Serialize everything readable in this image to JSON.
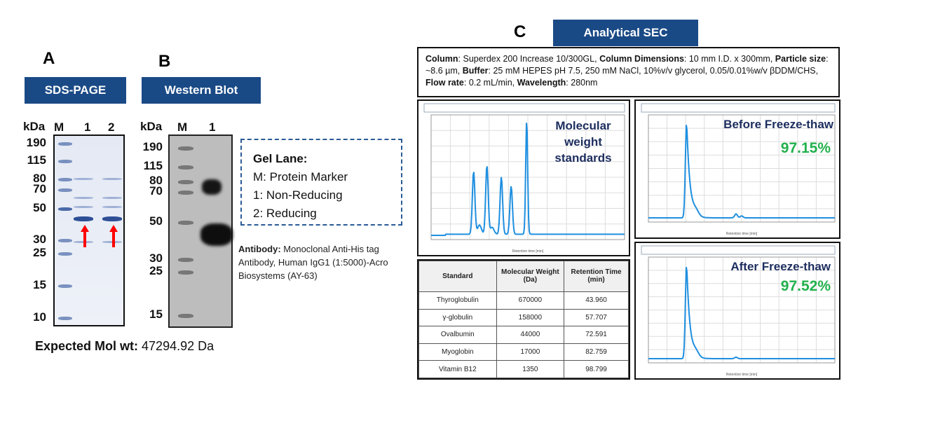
{
  "panel_a": {
    "letter": "A",
    "banner": "SDS-PAGE",
    "kda": "kDa",
    "lanes": [
      "M",
      "1",
      "2"
    ],
    "markers": [
      "190",
      "115",
      "80",
      "70",
      "50",
      "30",
      "25",
      "15",
      "10"
    ]
  },
  "panel_b": {
    "letter": "B",
    "banner": "Western Blot",
    "kda": "kDa",
    "lanes": [
      "M",
      "1"
    ],
    "markers": [
      "190",
      "115",
      "80",
      "70",
      "50",
      "30",
      "25",
      "15"
    ]
  },
  "legend": {
    "title": "Gel Lane:",
    "items": [
      "M: Protein Marker",
      "1: Non-Reducing",
      "2: Reducing"
    ]
  },
  "antibody": {
    "label": "Antibody:",
    "text": "Monoclonal Anti-His tag Antibody, Human IgG1 (1:5000)-Acro Biosystems (AY-63)"
  },
  "expected": {
    "label": "Expected Mol wt:",
    "value": "47294.92 Da"
  },
  "panel_c": {
    "letter": "C",
    "banner": "Analytical SEC"
  },
  "conditions": [
    {
      "k": "Column",
      "v": ": Superdex 200 Increase 10/300GL, "
    },
    {
      "k": "Column Dimensions",
      "v": ": 10 mm I.D. x 300mm, "
    },
    {
      "k": "Particle size",
      "v": ": ~8.6 µm, "
    },
    {
      "k": "Buffer",
      "v": ": 25 mM HEPES pH 7.5, 250 mM NaCl, 10%v/v glycerol, 0.05/0.01%w/v βDDM/CHS, "
    },
    {
      "k": "Flow rate",
      "v": ": 0.2 mL/min, "
    },
    {
      "k": "Wavelength",
      "v": ": 280nm"
    }
  ],
  "charts": {
    "standards": {
      "title": "Molecular weight standards",
      "xlabel": "Retention time [min]",
      "peaks": [
        43.96,
        57.707,
        72.591,
        82.759,
        98.799
      ],
      "heights": [
        0.55,
        0.6,
        0.5,
        0.42,
        1.0
      ],
      "xlim": [
        0,
        200
      ]
    },
    "before": {
      "title": "Before Freeze-thaw",
      "purity": "97.15%",
      "xlabel": "Retention time [min]",
      "main_peak": 41,
      "xlim": [
        0,
        200
      ]
    },
    "after": {
      "title": "After Freeze-thaw",
      "purity": "97.52%",
      "xlabel": "Retention time [min]",
      "main_peak": 41,
      "xlim": [
        0,
        200
      ]
    }
  },
  "table": {
    "headers": [
      "Standard",
      "Molecular Weight (Da)",
      "Retention Time (min)"
    ],
    "rows": [
      [
        "Thyroglobulin",
        "670000",
        "43.960"
      ],
      [
        "γ-globulin",
        "158000",
        "57.707"
      ],
      [
        "Ovalbumin",
        "44000",
        "72.591"
      ],
      [
        "Myoglobin",
        "17000",
        "82.759"
      ],
      [
        "Vitamin B12",
        "1350",
        "98.799"
      ]
    ]
  },
  "colors": {
    "banner": "#1a4a86",
    "trace": "#1e8fe0",
    "purity": "#22b14c",
    "arrow": "#ff0000"
  }
}
